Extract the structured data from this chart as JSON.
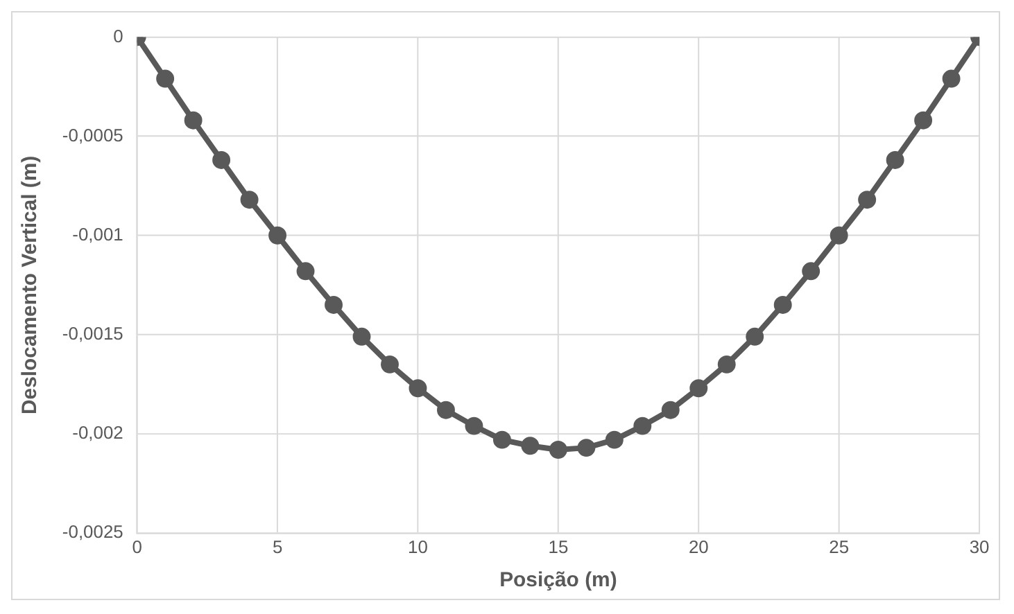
{
  "chart_data": {
    "type": "line",
    "xlabel": "Posição (m)",
    "ylabel": "Deslocamento Vertical (m)",
    "x": [
      0,
      1,
      2,
      3,
      4,
      5,
      6,
      7,
      8,
      9,
      10,
      11,
      12,
      13,
      14,
      15,
      16,
      17,
      18,
      19,
      20,
      21,
      22,
      23,
      24,
      25,
      26,
      27,
      28,
      29,
      30
    ],
    "series": [
      {
        "color": "#595959",
        "values": [
          0,
          -0.00021,
          -0.00042,
          -0.00062,
          -0.00082,
          -0.001,
          -0.00118,
          -0.00135,
          -0.00151,
          -0.00165,
          -0.00177,
          -0.00188,
          -0.00196,
          -0.00203,
          -0.00206,
          -0.00208,
          -0.00207,
          -0.00203,
          -0.00196,
          -0.00188,
          -0.00177,
          -0.00165,
          -0.00151,
          -0.00135,
          -0.00118,
          -0.001,
          -0.00082,
          -0.00062,
          -0.00042,
          -0.00021,
          0
        ]
      }
    ],
    "xlim": [
      0,
      30
    ],
    "xticks": [
      0,
      5,
      10,
      15,
      20,
      25,
      30
    ],
    "ylim": [
      -0.0025,
      0
    ],
    "yticks": [
      {
        "value": -0.0025,
        "label": "-0,0025"
      },
      {
        "value": -0.002,
        "label": "-0,002"
      },
      {
        "value": -0.0015,
        "label": "-0,0015"
      },
      {
        "value": -0.001,
        "label": "-0,001"
      },
      {
        "value": -0.0005,
        "label": "-0,0005"
      },
      0
    ],
    "grid": true,
    "legend": false,
    "marker": "circle",
    "line_style": "solid"
  }
}
